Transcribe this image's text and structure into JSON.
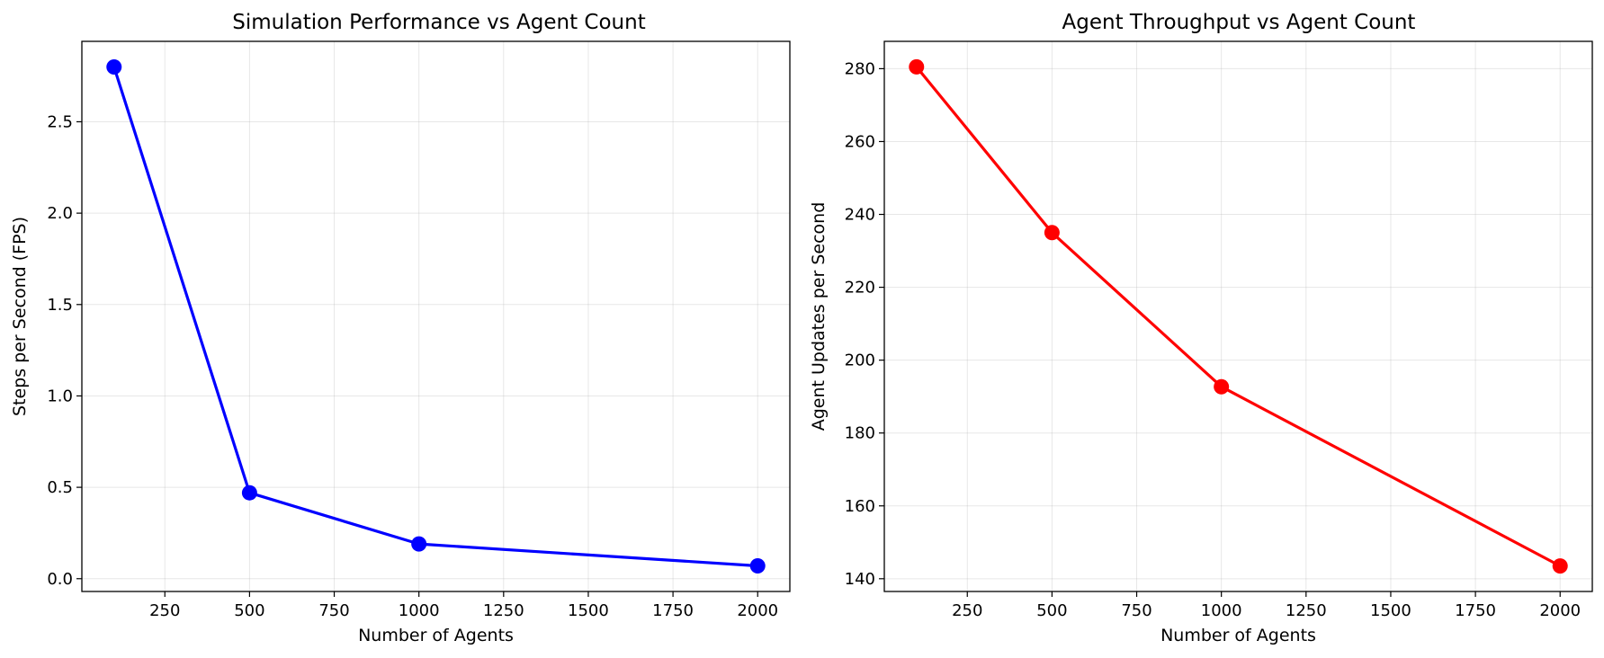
{
  "chart_data": [
    {
      "type": "line",
      "title": "Simulation Performance vs Agent Count",
      "xlabel": "Number of Agents",
      "ylabel": "Steps per Second (FPS)",
      "x": [
        100,
        500,
        1000,
        2000
      ],
      "series": [
        {
          "values": [
            2.8,
            0.47,
            0.19,
            0.07
          ],
          "color": "#0000ff",
          "marker": "circle"
        }
      ],
      "xlim": [
        5,
        2095
      ],
      "ylim": [
        -0.07,
        2.94
      ],
      "xticks": [
        250,
        500,
        750,
        1000,
        1250,
        1500,
        1750,
        2000
      ],
      "xtick_labels": [
        "250",
        "500",
        "750",
        "1000",
        "1250",
        "1500",
        "1750",
        "2000"
      ],
      "yticks": [
        0.0,
        0.5,
        1.0,
        1.5,
        2.0,
        2.5
      ],
      "ytick_labels": [
        "0.0",
        "0.5",
        "1.0",
        "1.5",
        "2.0",
        "2.5"
      ],
      "grid": true
    },
    {
      "type": "line",
      "title": "Agent Throughput vs Agent Count",
      "xlabel": "Number of Agents",
      "ylabel": "Agent Updates per Second",
      "x": [
        100,
        500,
        1000,
        2000
      ],
      "series": [
        {
          "values": [
            280.5,
            235.0,
            192.7,
            143.5
          ],
          "color": "#ff0000",
          "marker": "circle"
        }
      ],
      "xlim": [
        5,
        2095
      ],
      "ylim": [
        136.5,
        287.5
      ],
      "xticks": [
        250,
        500,
        750,
        1000,
        1250,
        1500,
        1750,
        2000
      ],
      "xtick_labels": [
        "250",
        "500",
        "750",
        "1000",
        "1250",
        "1500",
        "1750",
        "2000"
      ],
      "yticks": [
        140,
        160,
        180,
        200,
        220,
        240,
        260,
        280
      ],
      "ytick_labels": [
        "140",
        "160",
        "180",
        "200",
        "220",
        "240",
        "260",
        "280"
      ],
      "grid": true
    }
  ]
}
